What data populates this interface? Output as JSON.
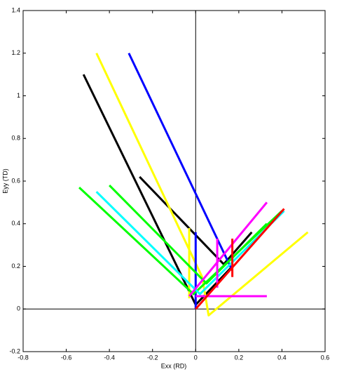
{
  "chart_data": {
    "type": "line",
    "xlabel": "Exx (RD)",
    "ylabel": "Eyy (TD)",
    "xlim": [
      -0.8,
      0.6
    ],
    "xticks": [
      -0.8,
      -0.6,
      -0.4,
      -0.2,
      0,
      0.2,
      0.4,
      0.6
    ],
    "ylim": [
      -0.2,
      1.4
    ],
    "yticks": [
      -0.2,
      0,
      0.2,
      0.4,
      0.6,
      0.8,
      1,
      1.2,
      1.4
    ],
    "zero_lines": true,
    "series": [
      {
        "color": "#000000",
        "x": [
          -0.52,
          0,
          0.17
        ],
        "values": [
          1.1,
          0.02,
          0.2
        ]
      },
      {
        "color": "#000000",
        "x": [
          -0.26,
          0.13,
          0.26
        ],
        "values": [
          0.62,
          0.21,
          0.36
        ]
      },
      {
        "color": "#ffff00",
        "x": [
          -0.46,
          0.03,
          0.06,
          0.52
        ],
        "values": [
          1.2,
          0.15,
          -0.03,
          0.36
        ]
      },
      {
        "color": "#ffff00",
        "x": [
          -0.03,
          -0.03
        ],
        "values": [
          0.38,
          0.05
        ]
      },
      {
        "color": "#0000ff",
        "x": [
          -0.31,
          0.17
        ],
        "values": [
          1.2,
          0.18
        ]
      },
      {
        "color": "#0000ff",
        "x": [
          0,
          0
        ],
        "values": [
          0.36,
          0.0
        ]
      },
      {
        "color": "#00ff00",
        "x": [
          -0.54,
          -0.01,
          0.4
        ],
        "values": [
          0.57,
          0.07,
          0.46
        ]
      },
      {
        "color": "#00ff00",
        "x": [
          -0.4,
          0.05,
          0.33
        ],
        "values": [
          0.58,
          0.12,
          0.4
        ]
      },
      {
        "color": "#00ffff",
        "x": [
          -0.46,
          0.02,
          0.41
        ],
        "values": [
          0.55,
          0.07,
          0.46
        ]
      },
      {
        "color": "#ff00ff",
        "x": [
          -0.03,
          0.33
        ],
        "values": [
          0.06,
          0.5
        ]
      },
      {
        "color": "#ff00ff",
        "x": [
          0,
          0.33
        ],
        "values": [
          0.06,
          0.06
        ]
      },
      {
        "color": "#ff00ff",
        "x": [
          0.1,
          0.1
        ],
        "values": [
          0.33,
          0.1
        ]
      },
      {
        "color": "#ff0000",
        "x": [
          0,
          0.41
        ],
        "values": [
          0,
          0.47
        ]
      },
      {
        "color": "#ff0000",
        "x": [
          0.17,
          0.17
        ],
        "values": [
          0.33,
          0.15
        ]
      }
    ]
  }
}
